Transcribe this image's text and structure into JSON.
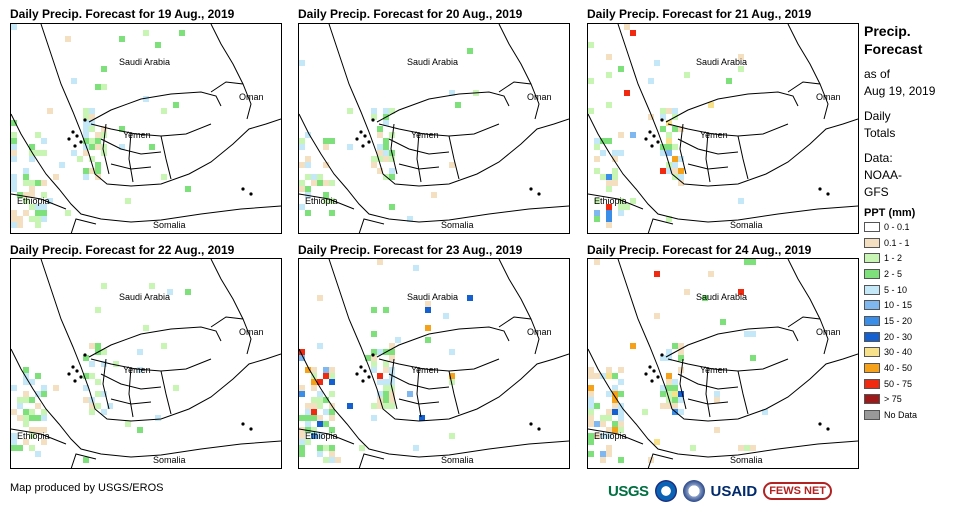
{
  "panels": [
    {
      "title": "Daily Precip. Forecast for 19 Aug., 2019"
    },
    {
      "title": "Daily Precip. Forecast for 20 Aug., 2019"
    },
    {
      "title": "Daily Precip. Forecast for 21 Aug., 2019"
    },
    {
      "title": "Daily Precip. Forecast for 22 Aug., 2019"
    },
    {
      "title": "Daily Precip. Forecast for 23 Aug., 2019"
    },
    {
      "title": "Daily Precip. Forecast for 24 Aug., 2019"
    }
  ],
  "map_labels": {
    "saudi": "Saudi Arabia",
    "oman": "Oman",
    "yemen": "Yemen",
    "ethiopia": "Ethiopia",
    "somalia": "Somalia"
  },
  "legend": {
    "title_line1": "Precip.",
    "title_line2": "Forecast",
    "asof_line1": "as of",
    "asof_line2": "Aug 19, 2019",
    "daily_line1": "Daily",
    "daily_line2": "Totals",
    "data_line1": "Data:",
    "data_line2": "NOAA-",
    "data_line3": "GFS",
    "ppt_title": "PPT (mm)",
    "classes": [
      {
        "label": "0 - 0.1",
        "color": "#ffffff"
      },
      {
        "label": "0.1 - 1",
        "color": "#f5dfc1"
      },
      {
        "label": "1 - 2",
        "color": "#c8f5b4"
      },
      {
        "label": "2 - 5",
        "color": "#7ee07a"
      },
      {
        "label": "5 - 10",
        "color": "#c4e8f8"
      },
      {
        "label": "10 - 15",
        "color": "#7fb8f0"
      },
      {
        "label": "15 - 20",
        "color": "#3b8ee8"
      },
      {
        "label": "20 - 30",
        "color": "#1560d0"
      },
      {
        "label": "30 - 40",
        "color": "#f7e18a"
      },
      {
        "label": "40 - 50",
        "color": "#f5a21a"
      },
      {
        "label": "50 - 75",
        "color": "#ef2a10"
      },
      {
        "label": "> 75",
        "color": "#9e1a1a"
      },
      {
        "label": "No Data",
        "color": "#999999"
      }
    ]
  },
  "footer": {
    "credit": "Map produced by USGS/EROS"
  },
  "logos": {
    "usgs": "USGS",
    "usaid": "USAID",
    "fews": "FEWS NET"
  }
}
